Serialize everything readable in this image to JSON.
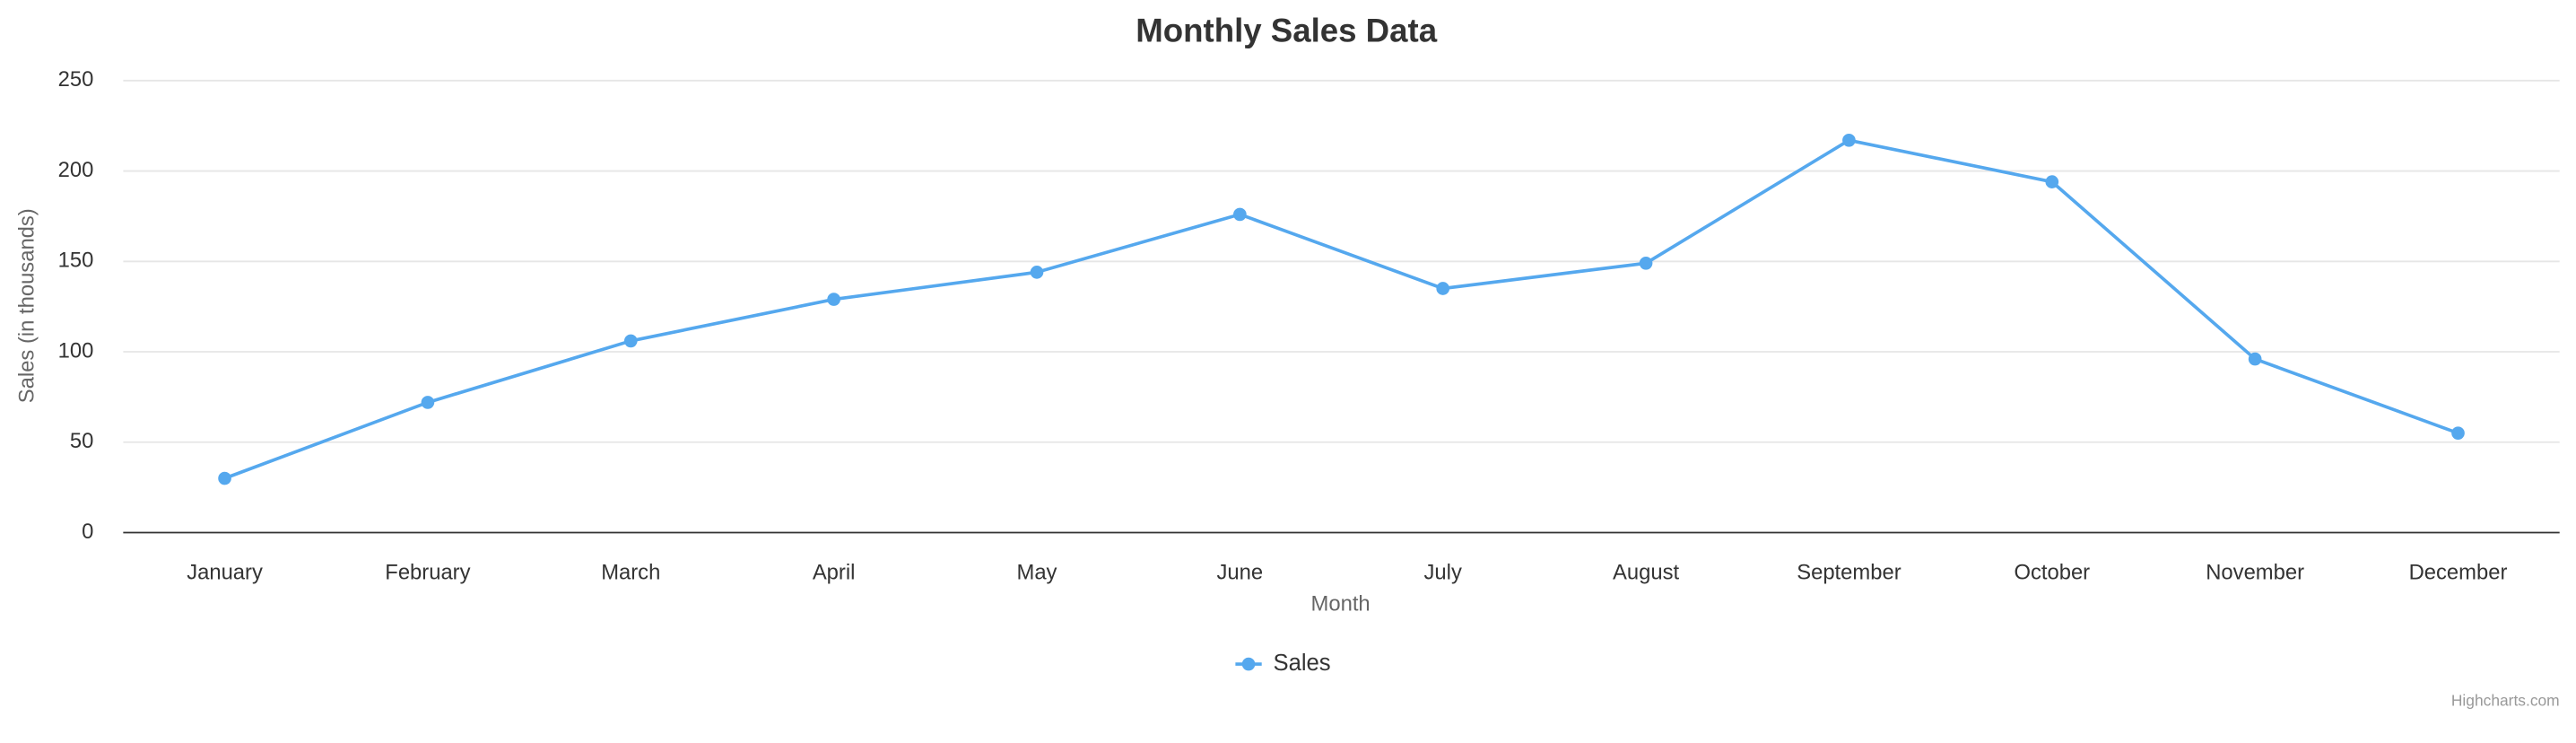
{
  "chart_data": {
    "type": "line",
    "title": "Monthly Sales Data",
    "x_label": "Month",
    "y_label": "Sales (in thousands)",
    "categories": [
      "January",
      "February",
      "March",
      "April",
      "May",
      "June",
      "July",
      "August",
      "September",
      "October",
      "November",
      "December"
    ],
    "series": [
      {
        "name": "Sales",
        "color": "#55a8ee",
        "values": [
          30,
          72,
          106,
          129,
          144,
          176,
          135,
          149,
          217,
          194,
          96,
          55
        ]
      }
    ],
    "ylim": [
      0,
      250
    ],
    "yticks": [
      0,
      50,
      100,
      150,
      200,
      250
    ],
    "grid": true,
    "legend": "bottom",
    "credits": "Highcharts.com"
  }
}
